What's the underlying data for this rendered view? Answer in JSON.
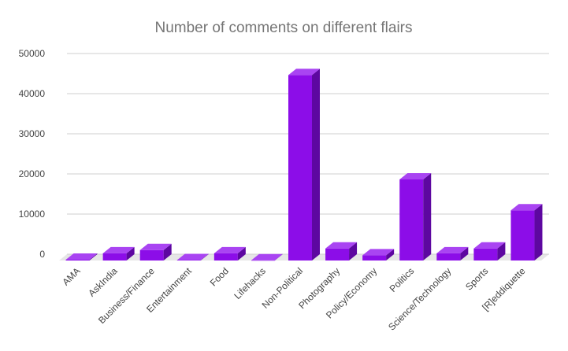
{
  "chart_data": {
    "type": "bar",
    "title": "Number of comments on different flairs",
    "xlabel": "",
    "ylabel": "",
    "categories": [
      "AMA",
      "AskIndia",
      "Business/Finance",
      "Entertainment",
      "Food",
      "Lifehacks",
      "Non-Political",
      "Photography",
      "Policy/Economy",
      "Politics",
      "Science/Technology",
      "Sports",
      "[R]eddiquette"
    ],
    "values": [
      200,
      1800,
      2600,
      100,
      1800,
      50,
      46200,
      3000,
      1300,
      20200,
      1800,
      3000,
      12500
    ],
    "yticks": [
      "0",
      "10000",
      "20000",
      "30000",
      "40000",
      "50000"
    ],
    "ylim": [
      0,
      50000
    ],
    "grid": true,
    "legend": "none",
    "colors": {
      "bar_front": "#8c0de8",
      "bar_top": "#a944f2",
      "bar_side": "#5d07a0",
      "floor": "#e6e6e6"
    }
  }
}
